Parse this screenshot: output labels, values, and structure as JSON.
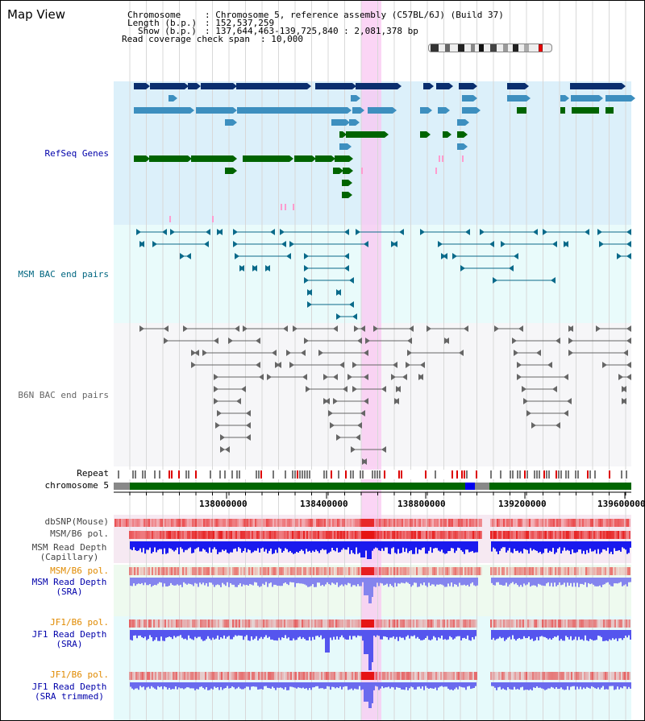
{
  "view": {
    "title": "Map View",
    "chromosome_key": "Chromosome",
    "chromosome_value": ": Chromosome 5, reference assembly (C57BL/6J) (Build 37)",
    "length_key": "Length (b.p.)",
    "length_value": ": 152,537,259",
    "show_key": "Show (b.p.)",
    "show_value": ": 137,644,463-139,725,840 : 2,081,378 bp",
    "coverage_key": "Read coverage check span",
    "coverage_value": ": 10,000"
  },
  "tracks": {
    "refseq": "RefSeq Genes",
    "msm_bac": "MSM BAC end pairs",
    "b6n_bac": "B6N BAC end pairs",
    "repeat": "Repeat",
    "chromosome": "chromosome 5",
    "dbsnp": "dbSNP(Mouse)",
    "msm_b6_pol": "MSM/B6 pol.",
    "msm_depth_cap_1": "MSM Read Depth",
    "msm_depth_cap_2": "(Capillary)",
    "msm_b6_pol_sra": "MSM/B6 pol.",
    "msm_depth_sra_1": "MSM Read Depth",
    "msm_depth_sra_2": "(SRA)",
    "jf1_b6_pol": "JF1/B6 pol.",
    "jf1_depth_sra_1": "JF1 Read Depth",
    "jf1_depth_sra_2": "(SRA)",
    "jf1_b6_pol_trim": "JF1/B6 pol.",
    "jf1_depth_trim_1": "JF1 Read Depth",
    "jf1_depth_trim_2": "(SRA trimmed)"
  },
  "axis": {
    "ticks": [
      "138000000",
      "138400000",
      "138800000",
      "139200000",
      "139600000"
    ]
  },
  "colors": {
    "refseq_dark": "#0a2e6e",
    "refseq_mid": "#3d8fbf",
    "refseq_green": "#006400",
    "msm_teal": "#0a6a8a",
    "b6n_gray": "#666666",
    "highlight": "#f9c7f1",
    "label_blue": "#0000aa",
    "label_teal": "#006680",
    "label_orange": "#e08a00"
  }
}
